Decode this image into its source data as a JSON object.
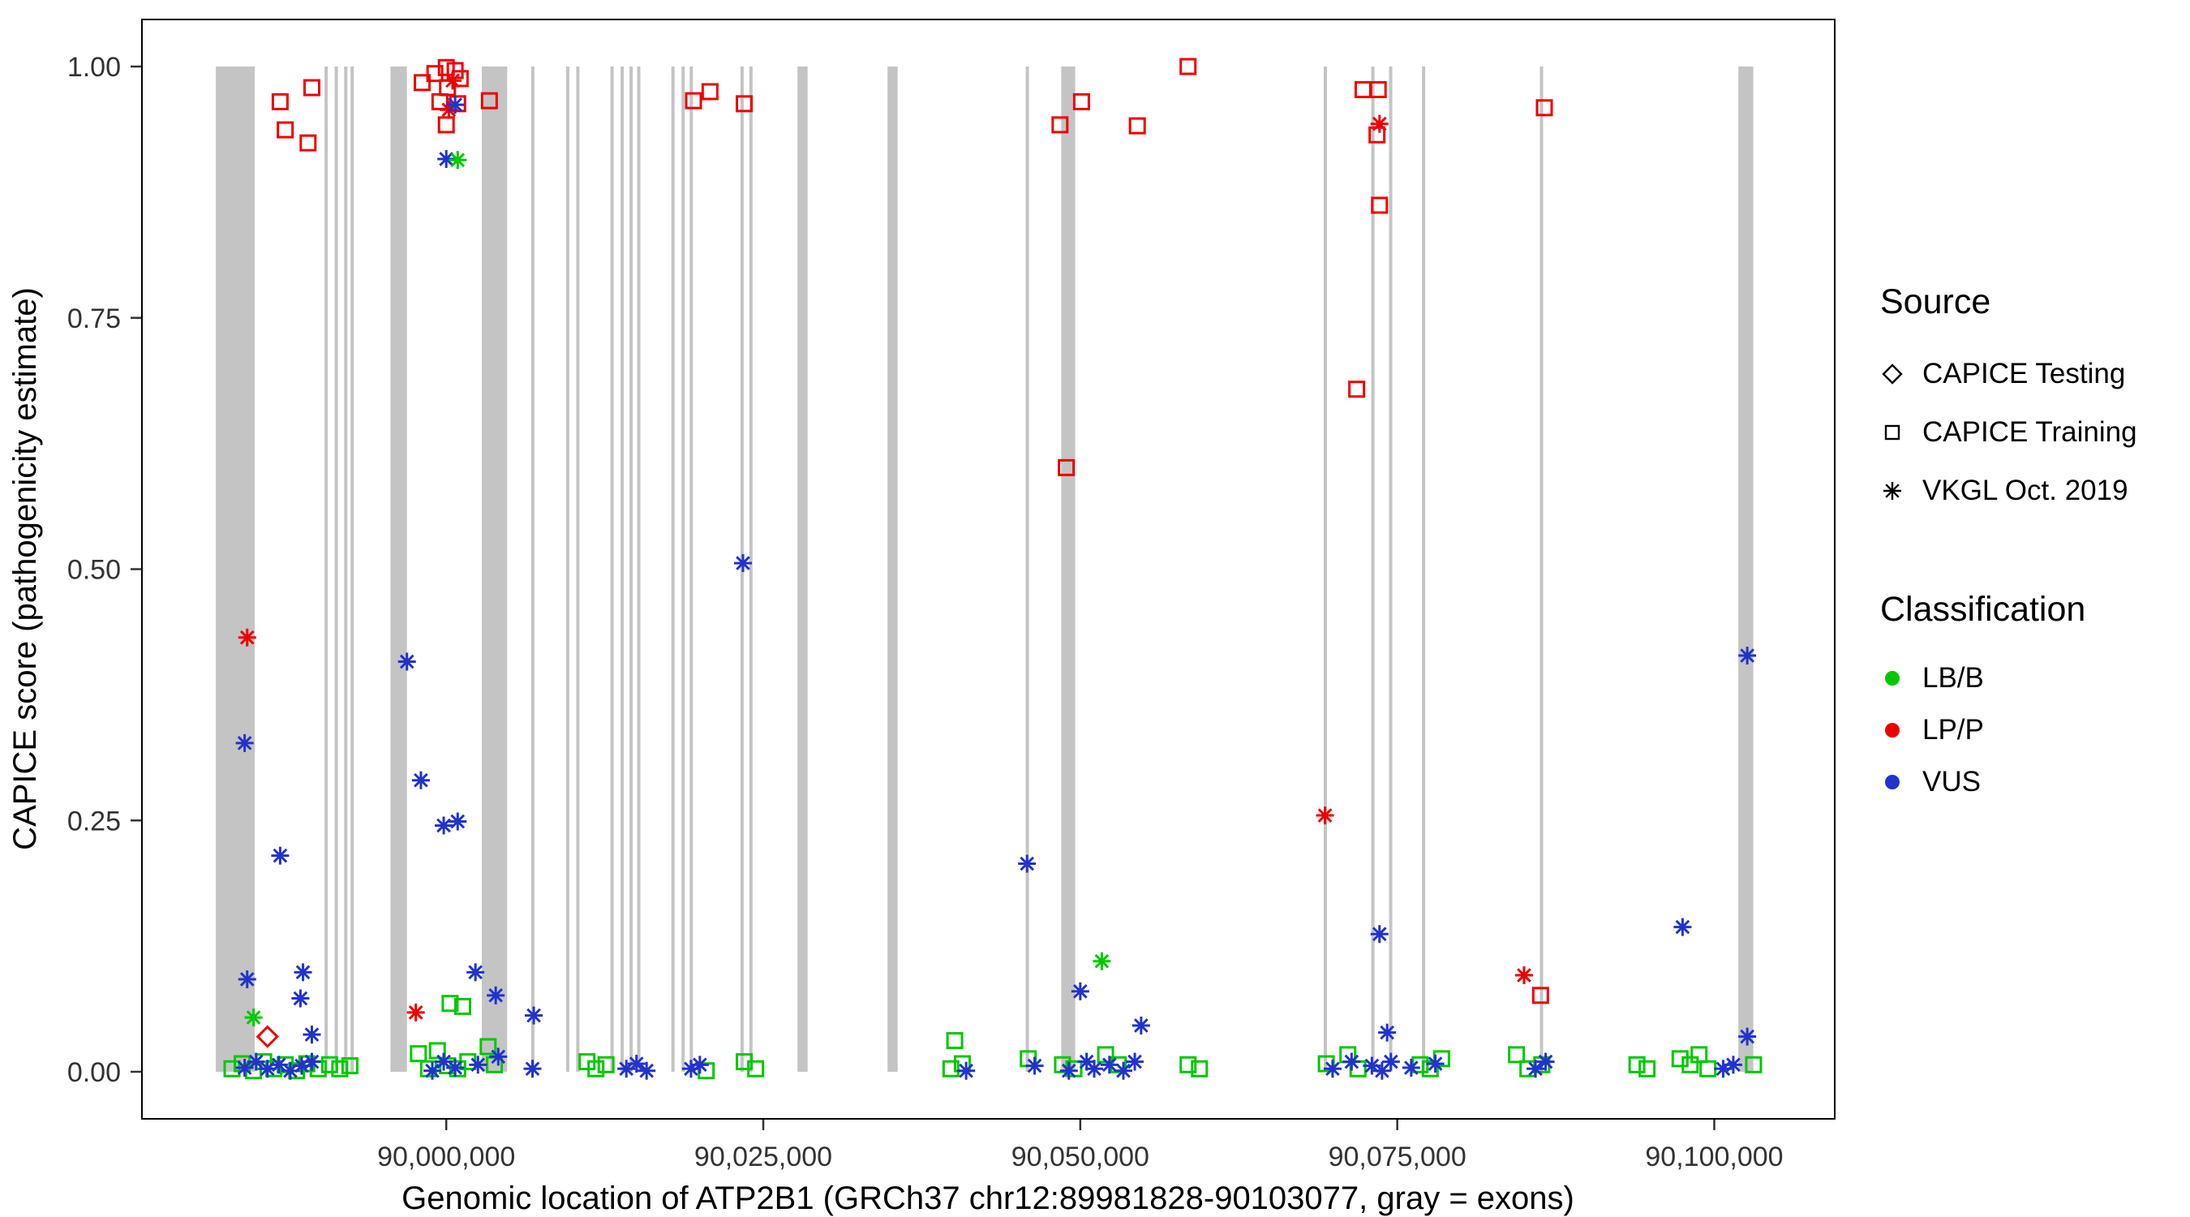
{
  "chart_data": {
    "type": "scatter",
    "title": "",
    "xlabel": "Genomic location of ATP2B1 (GRCh37 chr12:89981828-90103077, gray = exons)",
    "ylabel": "CAPICE score (pathogenicity estimate)",
    "x_range": [
      89976000,
      90109500
    ],
    "y_range": [
      0.0,
      1.0
    ],
    "x_ticks": [
      {
        "value": 90000000,
        "label": "90,000,000"
      },
      {
        "value": 90025000,
        "label": "90,025,000"
      },
      {
        "value": 90050000,
        "label": "90,050,000"
      },
      {
        "value": 90075000,
        "label": "90,075,000"
      },
      {
        "value": 90100000,
        "label": "90,100,000"
      }
    ],
    "y_ticks": [
      {
        "value": 0.0,
        "label": "0.00"
      },
      {
        "value": 0.25,
        "label": "0.25"
      },
      {
        "value": 0.5,
        "label": "0.50"
      },
      {
        "value": 0.75,
        "label": "0.75"
      },
      {
        "value": 1.0,
        "label": "1.00"
      }
    ],
    "grid": false,
    "legend_position": "right",
    "exon_color": "#c4c4c4",
    "shape_map": {
      "te": "diamond",
      "tr": "square",
      "vk": "asterisk"
    },
    "source_names": {
      "te": "CAPICE Testing",
      "tr": "CAPICE Training",
      "vk": "VKGL Oct. 2019"
    },
    "class_names": {
      "B": "LB/B",
      "P": "LP/P",
      "V": "VUS"
    },
    "class_colors": {
      "B": "#00c800",
      "P": "#ee0000",
      "V": "#2233cc"
    },
    "exons": [
      [
        89981828,
        89984900
      ],
      [
        89990400,
        89990650
      ],
      [
        89991200,
        89991450
      ],
      [
        89991950,
        89992200
      ],
      [
        89992450,
        89992700
      ],
      [
        89995600,
        89996900
      ],
      [
        90002800,
        90004800
      ],
      [
        90006700,
        90006950
      ],
      [
        90009450,
        90009700
      ],
      [
        90010250,
        90010500
      ],
      [
        90012950,
        90013200
      ],
      [
        90013750,
        90014000
      ],
      [
        90014450,
        90014700
      ],
      [
        90015050,
        90015300
      ],
      [
        90017750,
        90018000
      ],
      [
        90018550,
        90018800
      ],
      [
        90019200,
        90019450
      ],
      [
        90023200,
        90023450
      ],
      [
        90023900,
        90024150
      ],
      [
        90027700,
        90028500
      ],
      [
        90034800,
        90035600
      ],
      [
        90045700,
        90045950
      ],
      [
        90048500,
        90049600
      ],
      [
        90069200,
        90069450
      ],
      [
        90072950,
        90073200
      ],
      [
        90074350,
        90074600
      ],
      [
        90076950,
        90077200
      ],
      [
        90086250,
        90086500
      ],
      [
        90101900,
        90103077
      ]
    ],
    "points": [
      [
        89986900,
        0.965,
        "tr",
        "P"
      ],
      [
        89989400,
        0.979,
        "tr",
        "P"
      ],
      [
        89987300,
        0.937,
        "tr",
        "P"
      ],
      [
        89989100,
        0.924,
        "tr",
        "P"
      ],
      [
        89998100,
        0.984,
        "tr",
        "P"
      ],
      [
        89999100,
        0.993,
        "tr",
        "P"
      ],
      [
        90000000,
        0.999,
        "tr",
        "P"
      ],
      [
        90000700,
        0.996,
        "tr",
        "P"
      ],
      [
        90001100,
        0.988,
        "tr",
        "P"
      ],
      [
        90000100,
        0.979,
        "tr",
        "P"
      ],
      [
        89999500,
        0.965,
        "tr",
        "P"
      ],
      [
        90000900,
        0.963,
        "tr",
        "P"
      ],
      [
        90000000,
        0.942,
        "tr",
        "P"
      ],
      [
        90003400,
        0.966,
        "tr",
        "P"
      ],
      [
        90019500,
        0.966,
        "tr",
        "P"
      ],
      [
        90020800,
        0.975,
        "tr",
        "P"
      ],
      [
        90023500,
        0.963,
        "tr",
        "P"
      ],
      [
        90048400,
        0.942,
        "tr",
        "P"
      ],
      [
        90050100,
        0.965,
        "tr",
        "P"
      ],
      [
        90054500,
        0.941,
        "tr",
        "P"
      ],
      [
        90058500,
        1.0,
        "tr",
        "P"
      ],
      [
        90048900,
        0.601,
        "tr",
        "P"
      ],
      [
        90072300,
        0.977,
        "tr",
        "P"
      ],
      [
        90073500,
        0.977,
        "tr",
        "P"
      ],
      [
        90073400,
        0.932,
        "tr",
        "P"
      ],
      [
        90073600,
        0.862,
        "tr",
        "P"
      ],
      [
        90071800,
        0.679,
        "tr",
        "P"
      ],
      [
        90086300,
        0.076,
        "tr",
        "P"
      ],
      [
        90086600,
        0.959,
        "tr",
        "P"
      ],
      [
        90000500,
        0.986,
        "vk",
        "P"
      ],
      [
        90000200,
        0.957,
        "vk",
        "P"
      ],
      [
        89984300,
        0.432,
        "vk",
        "P"
      ],
      [
        89997600,
        0.059,
        "vk",
        "P"
      ],
      [
        90069300,
        0.255,
        "vk",
        "P"
      ],
      [
        90073600,
        0.943,
        "vk",
        "P"
      ],
      [
        90085000,
        0.096,
        "vk",
        "P"
      ],
      [
        89985900,
        0.035,
        "te",
        "P"
      ],
      [
        90000700,
        0.962,
        "vk",
        "V"
      ],
      [
        90000000,
        0.908,
        "vk",
        "V"
      ],
      [
        89984100,
        0.327,
        "vk",
        "V"
      ],
      [
        89986900,
        0.215,
        "vk",
        "V"
      ],
      [
        89988700,
        0.099,
        "vk",
        "V"
      ],
      [
        89984300,
        0.092,
        "vk",
        "V"
      ],
      [
        89988500,
        0.073,
        "vk",
        "V"
      ],
      [
        89989400,
        0.037,
        "vk",
        "V"
      ],
      [
        89996900,
        0.408,
        "vk",
        "V"
      ],
      [
        89998000,
        0.29,
        "vk",
        "V"
      ],
      [
        89999800,
        0.245,
        "vk",
        "V"
      ],
      [
        90000900,
        0.249,
        "vk",
        "V"
      ],
      [
        90002300,
        0.099,
        "vk",
        "V"
      ],
      [
        90003900,
        0.076,
        "vk",
        "V"
      ],
      [
        90006900,
        0.056,
        "vk",
        "V"
      ],
      [
        90023400,
        0.506,
        "vk",
        "V"
      ],
      [
        90045800,
        0.207,
        "vk",
        "V"
      ],
      [
        90050000,
        0.08,
        "vk",
        "V"
      ],
      [
        90054800,
        0.046,
        "vk",
        "V"
      ],
      [
        90073600,
        0.137,
        "vk",
        "V"
      ],
      [
        90074200,
        0.039,
        "vk",
        "V"
      ],
      [
        90097500,
        0.144,
        "vk",
        "V"
      ],
      [
        90102600,
        0.414,
        "vk",
        "V"
      ],
      [
        90102600,
        0.035,
        "vk",
        "V"
      ],
      [
        89984800,
        0.054,
        "vk",
        "B"
      ],
      [
        90000900,
        0.907,
        "vk",
        "B"
      ],
      [
        90051700,
        0.11,
        "vk",
        "B"
      ],
      [
        90000300,
        0.068,
        "tr",
        "B"
      ],
      [
        90001300,
        0.065,
        "tr",
        "B"
      ],
      [
        90040100,
        0.031,
        "tr",
        "B"
      ],
      [
        89997800,
        0.018,
        "tr",
        "B"
      ],
      [
        89999300,
        0.021,
        "tr",
        "B"
      ],
      [
        90003300,
        0.025,
        "tr",
        "B"
      ],
      [
        89983100,
        0.003,
        "tr",
        "B"
      ],
      [
        89983900,
        0.008,
        "tr",
        "B"
      ],
      [
        89984800,
        0.001,
        "tr",
        "B"
      ],
      [
        89985600,
        0.01,
        "tr",
        "B"
      ],
      [
        89986400,
        0.003,
        "tr",
        "B"
      ],
      [
        89987300,
        0.007,
        "tr",
        "B"
      ],
      [
        89988200,
        0.001,
        "tr",
        "B"
      ],
      [
        89989000,
        0.008,
        "tr",
        "B"
      ],
      [
        89989900,
        0.003,
        "tr",
        "B"
      ],
      [
        89990800,
        0.007,
        "tr",
        "B"
      ],
      [
        89991600,
        0.003,
        "tr",
        "B"
      ],
      [
        89992400,
        0.006,
        "tr",
        "B"
      ],
      [
        89998600,
        0.003,
        "tr",
        "B"
      ],
      [
        90000100,
        0.006,
        "tr",
        "B"
      ],
      [
        90000900,
        0.003,
        "tr",
        "B"
      ],
      [
        90001700,
        0.01,
        "tr",
        "B"
      ],
      [
        90003800,
        0.007,
        "tr",
        "B"
      ],
      [
        90011100,
        0.01,
        "tr",
        "B"
      ],
      [
        90011800,
        0.003,
        "tr",
        "B"
      ],
      [
        90012600,
        0.007,
        "tr",
        "B"
      ],
      [
        90020500,
        0.001,
        "tr",
        "B"
      ],
      [
        90023500,
        0.01,
        "tr",
        "B"
      ],
      [
        90024400,
        0.003,
        "tr",
        "B"
      ],
      [
        90039800,
        0.003,
        "tr",
        "B"
      ],
      [
        90040700,
        0.008,
        "tr",
        "B"
      ],
      [
        90045900,
        0.013,
        "tr",
        "B"
      ],
      [
        90048600,
        0.007,
        "tr",
        "B"
      ],
      [
        90049500,
        0.003,
        "tr",
        "B"
      ],
      [
        90052000,
        0.017,
        "tr",
        "B"
      ],
      [
        90053000,
        0.007,
        "tr",
        "B"
      ],
      [
        90058500,
        0.007,
        "tr",
        "B"
      ],
      [
        90059400,
        0.003,
        "tr",
        "B"
      ],
      [
        90069400,
        0.008,
        "tr",
        "B"
      ],
      [
        90071100,
        0.017,
        "tr",
        "B"
      ],
      [
        90071900,
        0.003,
        "tr",
        "B"
      ],
      [
        90076800,
        0.007,
        "tr",
        "B"
      ],
      [
        90077600,
        0.003,
        "tr",
        "B"
      ],
      [
        90078500,
        0.013,
        "tr",
        "B"
      ],
      [
        90084400,
        0.017,
        "tr",
        "B"
      ],
      [
        90085300,
        0.003,
        "tr",
        "B"
      ],
      [
        90086400,
        0.007,
        "tr",
        "B"
      ],
      [
        90093900,
        0.007,
        "tr",
        "B"
      ],
      [
        90094700,
        0.003,
        "tr",
        "B"
      ],
      [
        90097300,
        0.013,
        "tr",
        "B"
      ],
      [
        90098100,
        0.007,
        "tr",
        "B"
      ],
      [
        90098800,
        0.017,
        "tr",
        "B"
      ],
      [
        90099500,
        0.003,
        "tr",
        "B"
      ],
      [
        90103100,
        0.007,
        "tr",
        "B"
      ],
      [
        89984100,
        0.004,
        "vk",
        "V"
      ],
      [
        89985000,
        0.01,
        "vk",
        "V"
      ],
      [
        89985900,
        0.003,
        "vk",
        "V"
      ],
      [
        89986800,
        0.007,
        "vk",
        "V"
      ],
      [
        89987700,
        0.001,
        "vk",
        "V"
      ],
      [
        89988600,
        0.006,
        "vk",
        "V"
      ],
      [
        89989400,
        0.01,
        "vk",
        "V"
      ],
      [
        89998900,
        0.001,
        "vk",
        "V"
      ],
      [
        89999800,
        0.01,
        "vk",
        "V"
      ],
      [
        90000700,
        0.004,
        "vk",
        "V"
      ],
      [
        90002500,
        0.007,
        "vk",
        "V"
      ],
      [
        90004100,
        0.015,
        "vk",
        "V"
      ],
      [
        90006800,
        0.003,
        "vk",
        "V"
      ],
      [
        90014200,
        0.003,
        "vk",
        "V"
      ],
      [
        90015000,
        0.008,
        "vk",
        "V"
      ],
      [
        90015800,
        0.001,
        "vk",
        "V"
      ],
      [
        90019300,
        0.003,
        "vk",
        "V"
      ],
      [
        90020000,
        0.007,
        "vk",
        "V"
      ],
      [
        90041000,
        0.001,
        "vk",
        "V"
      ],
      [
        90046400,
        0.006,
        "vk",
        "V"
      ],
      [
        90049100,
        0.001,
        "vk",
        "V"
      ],
      [
        90050500,
        0.01,
        "vk",
        "V"
      ],
      [
        90051100,
        0.003,
        "vk",
        "V"
      ],
      [
        90052300,
        0.007,
        "vk",
        "V"
      ],
      [
        90053400,
        0.001,
        "vk",
        "V"
      ],
      [
        90054300,
        0.01,
        "vk",
        "V"
      ],
      [
        90069900,
        0.003,
        "vk",
        "V"
      ],
      [
        90071400,
        0.01,
        "vk",
        "V"
      ],
      [
        90073000,
        0.006,
        "vk",
        "V"
      ],
      [
        90073800,
        0.001,
        "vk",
        "V"
      ],
      [
        90074500,
        0.01,
        "vk",
        "V"
      ],
      [
        90076100,
        0.004,
        "vk",
        "V"
      ],
      [
        90078000,
        0.008,
        "vk",
        "V"
      ],
      [
        90085900,
        0.003,
        "vk",
        "V"
      ],
      [
        90086700,
        0.01,
        "vk",
        "V"
      ],
      [
        90100700,
        0.003,
        "vk",
        "V"
      ],
      [
        90101500,
        0.007,
        "vk",
        "V"
      ]
    ]
  },
  "legend": {
    "source": {
      "title": "Source",
      "items": [
        {
          "label": "CAPICE Testing",
          "shape": "diamond"
        },
        {
          "label": "CAPICE Training",
          "shape": "square"
        },
        {
          "label": "VKGL Oct. 2019",
          "shape": "asterisk"
        }
      ]
    },
    "classification": {
      "title": "Classification",
      "items": [
        {
          "label": "LB/B",
          "color": "#00c800"
        },
        {
          "label": "LP/P",
          "color": "#ee0000"
        },
        {
          "label": "VUS",
          "color": "#2233cc"
        }
      ]
    }
  }
}
